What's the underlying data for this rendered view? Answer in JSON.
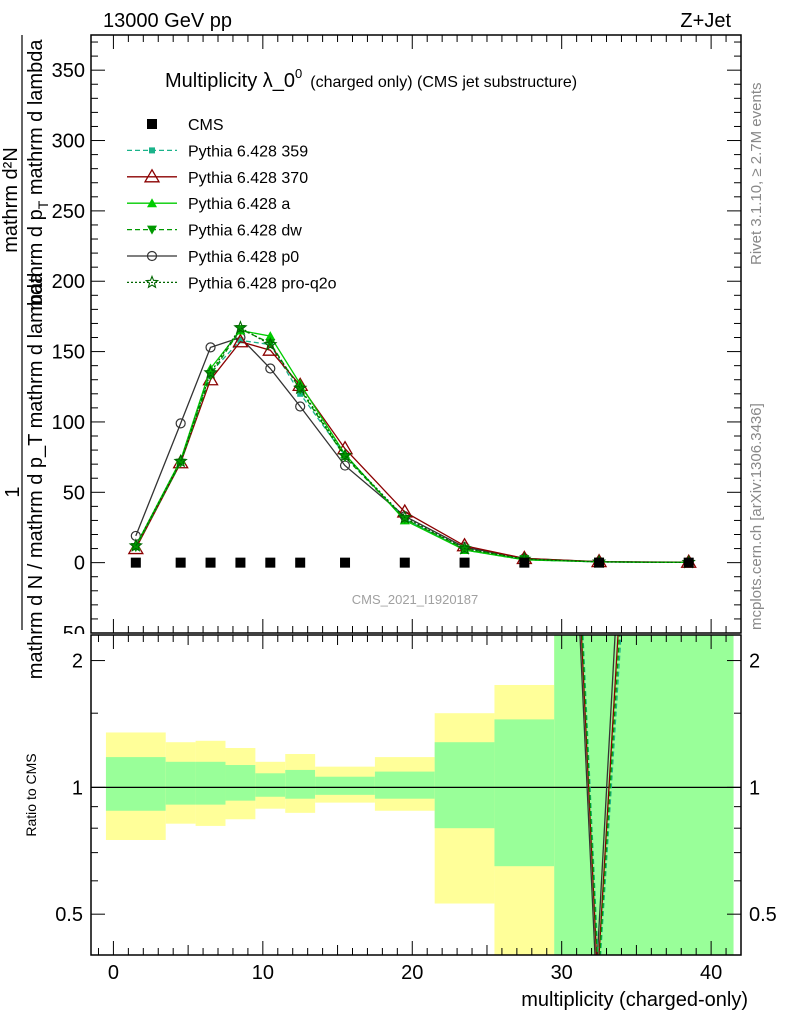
{
  "header": {
    "energy_label": "13000 GeV pp",
    "process_label": "Z+Jet"
  },
  "side_labels": {
    "rivet": "Rivet 3.1.10, ≥ 2.7M events",
    "mcplots": "mcplots.cern.ch [arXiv:1306.3436]"
  },
  "watermark": "CMS_2021_I1920187",
  "colors": {
    "band_outer": "#ffff99",
    "band_inner": "#99ff99",
    "p359": "#1ab38a",
    "p370": "#8b0000",
    "pa": "#00cc00",
    "pdw": "#009900",
    "pp0": "#333333",
    "pq2o": "#006600"
  },
  "chart_data": [
    {
      "type": "line",
      "title": "Multiplicity λ_0",
      "title_sup": "0",
      "title_suffix": "(charged only) (CMS jet substructure)",
      "ylabel_numerator": "1",
      "ylabel_denominator": "mathrm d N / mathrm d p_T mathrm d lambda",
      "ylabel_inner_num": "mathrm d²N",
      "ylabel_inner_den": "mathrm d p",
      "ylabel_inner_den_sub": "T",
      "ylabel_inner_den_tail": " mathrm d lambda",
      "ylim": [
        -50,
        375
      ],
      "xlim": [
        -1.5,
        42
      ],
      "y_ticks": [
        "0",
        "50",
        "100",
        "150",
        "200",
        "250",
        "300",
        "350"
      ],
      "y_tick_bottom_partial": "50",
      "legend_placement": "top-left",
      "x": [
        1.5,
        4.5,
        6.5,
        8.5,
        10.5,
        12.5,
        15.5,
        19.5,
        23.5,
        27.5,
        32.5,
        38.5
      ],
      "series": [
        {
          "name": "CMS",
          "key": "cms",
          "values": [
            0,
            0,
            0,
            0,
            0,
            0,
            0,
            0,
            0,
            0,
            0,
            0
          ]
        },
        {
          "name": "Pythia 6.428 359",
          "key": "p359",
          "values": [
            11,
            72,
            135,
            158,
            155,
            120,
            76,
            31,
            9,
            2,
            0.5,
            0.2
          ]
        },
        {
          "name": "Pythia 6.428 370",
          "key": "p370",
          "values": [
            10,
            71,
            130,
            157,
            151,
            126,
            81,
            36,
            12,
            3,
            0.7,
            0.3
          ]
        },
        {
          "name": "Pythia 6.428 a",
          "key": "pa",
          "values": [
            12,
            73,
            138,
            165,
            161,
            127,
            77,
            30,
            9,
            2,
            0.5,
            0.2
          ]
        },
        {
          "name": "Pythia 6.428 dw",
          "key": "pdw",
          "values": [
            11,
            71,
            133,
            166,
            156,
            123,
            75,
            31,
            10,
            2.5,
            0.6,
            0.2
          ]
        },
        {
          "name": "Pythia 6.428 p0",
          "key": "pp0",
          "values": [
            19,
            99,
            153,
            160,
            138,
            111,
            69,
            33,
            11,
            3,
            0.6,
            0.2
          ]
        },
        {
          "name": "Pythia 6.428 pro-q2o",
          "key": "pq2o",
          "values": [
            12,
            72,
            135,
            167,
            155,
            124,
            76,
            32,
            10,
            2.5,
            0.5,
            0.2
          ]
        }
      ]
    },
    {
      "type": "line",
      "ylabel": "Ratio to CMS",
      "xlabel": "multiplicity (charged-only)",
      "ylim": [
        0.4,
        2.3
      ],
      "y_ticks": [
        "0.5",
        "1",
        "2"
      ],
      "x_ticks": [
        "0",
        "10",
        "20",
        "30",
        "40"
      ],
      "bins": [
        {
          "lo": -0.5,
          "hi": 3.5,
          "outer": [
            0.75,
            1.35
          ],
          "inner": [
            0.88,
            1.18
          ]
        },
        {
          "lo": 3.5,
          "hi": 5.5,
          "outer": [
            0.82,
            1.28
          ],
          "inner": [
            0.91,
            1.15
          ]
        },
        {
          "lo": 5.5,
          "hi": 7.5,
          "outer": [
            0.81,
            1.29
          ],
          "inner": [
            0.91,
            1.15
          ]
        },
        {
          "lo": 7.5,
          "hi": 9.5,
          "outer": [
            0.84,
            1.24
          ],
          "inner": [
            0.93,
            1.13
          ]
        },
        {
          "lo": 9.5,
          "hi": 11.5,
          "outer": [
            0.89,
            1.15
          ],
          "inner": [
            0.95,
            1.08
          ]
        },
        {
          "lo": 11.5,
          "hi": 13.5,
          "outer": [
            0.87,
            1.2
          ],
          "inner": [
            0.94,
            1.1
          ]
        },
        {
          "lo": 13.5,
          "hi": 17.5,
          "outer": [
            0.92,
            1.12
          ],
          "inner": [
            0.96,
            1.06
          ]
        },
        {
          "lo": 17.5,
          "hi": 21.5,
          "outer": [
            0.88,
            1.18
          ],
          "inner": [
            0.94,
            1.09
          ]
        },
        {
          "lo": 21.5,
          "hi": 25.5,
          "outer": [
            0.53,
            1.5
          ],
          "inner": [
            0.8,
            1.28
          ]
        },
        {
          "lo": 25.5,
          "hi": 29.5,
          "outer": [
            0.35,
            1.75
          ],
          "inner": [
            0.65,
            1.45
          ]
        },
        {
          "lo": 29.5,
          "hi": 41.5,
          "outer": [
            0.35,
            2.4
          ],
          "inner": [
            0.35,
            2.4
          ]
        }
      ],
      "ratio_lines": [
        {
          "key": "pp0",
          "points": [
            [
              31.2,
              2.4
            ],
            [
              32.3,
              0.35
            ],
            [
              33.6,
              2.4
            ]
          ]
        },
        {
          "key": "p370",
          "points": [
            [
              31.3,
              2.4
            ],
            [
              32.4,
              0.35
            ],
            [
              33.8,
              2.4
            ]
          ]
        },
        {
          "key": "p359",
          "points": [
            [
              31.4,
              2.4
            ],
            [
              32.5,
              0.35
            ],
            [
              34.0,
              2.4
            ]
          ]
        },
        {
          "key": "pdw",
          "points": [
            [
              31.35,
              2.4
            ],
            [
              32.45,
              0.35
            ],
            [
              33.9,
              2.4
            ]
          ]
        }
      ]
    }
  ]
}
